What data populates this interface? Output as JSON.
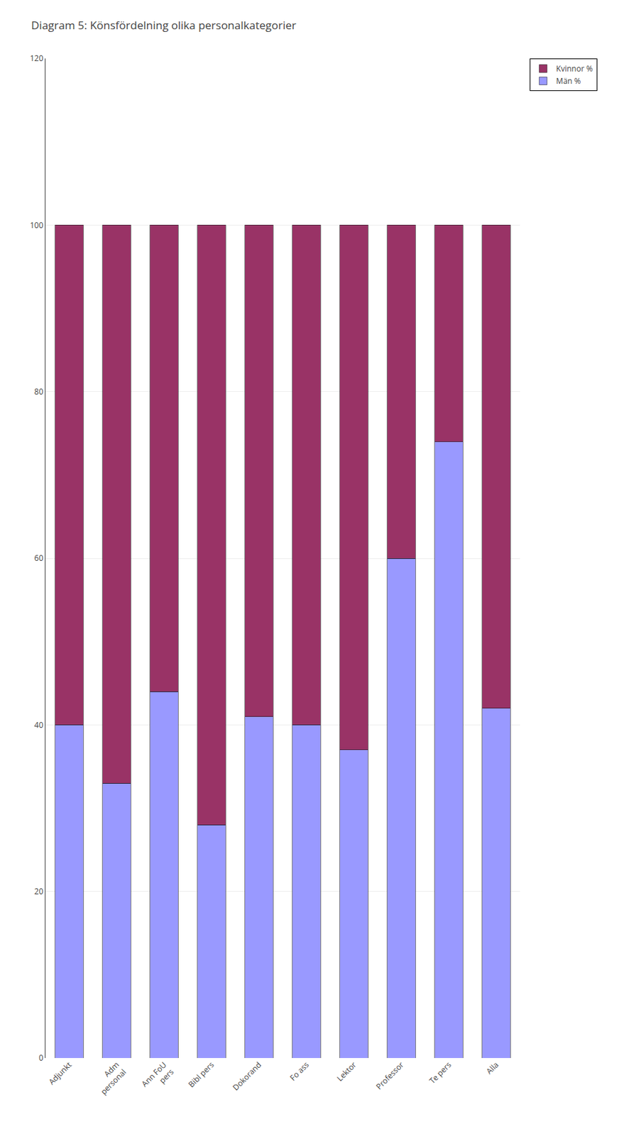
{
  "chart_data": {
    "type": "bar",
    "stacked": true,
    "title": "Diagram 5: Könsfördelning olika personalkategorier",
    "categories": [
      "Adjunkt",
      "Adm\npersonal",
      "Ann FoU\npers",
      "Bibl pers",
      "Dokorand",
      "Fo ass",
      "Lektor",
      "Professor",
      "Te pers",
      "Alla"
    ],
    "series": [
      {
        "name": "Män %",
        "color": "#9999FF",
        "values": [
          40,
          33,
          44,
          28,
          41,
          40,
          37,
          60,
          74,
          42
        ]
      },
      {
        "name": "Kvinnor %",
        "color": "#993366",
        "values": [
          60,
          67,
          56,
          72,
          59,
          60,
          63,
          40,
          26,
          58
        ]
      }
    ],
    "ylim": [
      0,
      120
    ],
    "yticks": [
      0,
      20,
      40,
      60,
      80,
      100,
      120
    ],
    "grid": true,
    "legend": "right"
  }
}
